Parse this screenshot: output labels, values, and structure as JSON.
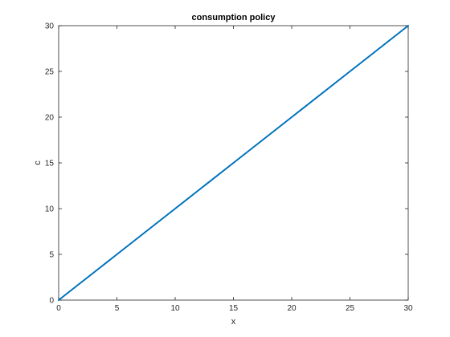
{
  "chart_data": {
    "type": "line",
    "title": "consumption policy",
    "xlabel": "x",
    "ylabel": "c",
    "xlim": [
      0,
      30
    ],
    "ylim": [
      0,
      30
    ],
    "xticks": [
      0,
      5,
      10,
      15,
      20,
      25,
      30
    ],
    "yticks": [
      0,
      5,
      10,
      15,
      20,
      25,
      30
    ],
    "grid": false,
    "series": [
      {
        "x": [
          0,
          5,
          10,
          15,
          20,
          25,
          30
        ],
        "y": [
          0,
          5,
          10,
          15,
          20,
          25,
          30
        ],
        "color": "#0072BD"
      }
    ]
  }
}
